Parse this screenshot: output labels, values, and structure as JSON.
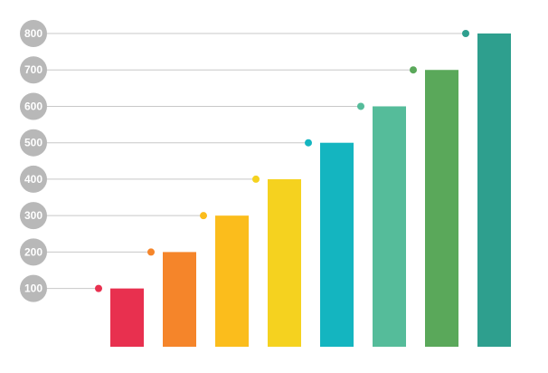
{
  "chart_data": {
    "type": "bar",
    "categories": [
      null,
      null,
      null,
      null,
      null,
      null,
      null,
      null
    ],
    "values": [
      100,
      200,
      300,
      400,
      500,
      600,
      700,
      800
    ],
    "colors": [
      "#e8304f",
      "#f5852a",
      "#fbbd1c",
      "#f5d21f",
      "#14b5c0",
      "#55bc9a",
      "#5aa85a",
      "#2e9f8e"
    ],
    "ylim": [
      -60,
      800
    ],
    "yticks": [
      100,
      200,
      300,
      400,
      500,
      600,
      700,
      800
    ],
    "grid": true
  }
}
